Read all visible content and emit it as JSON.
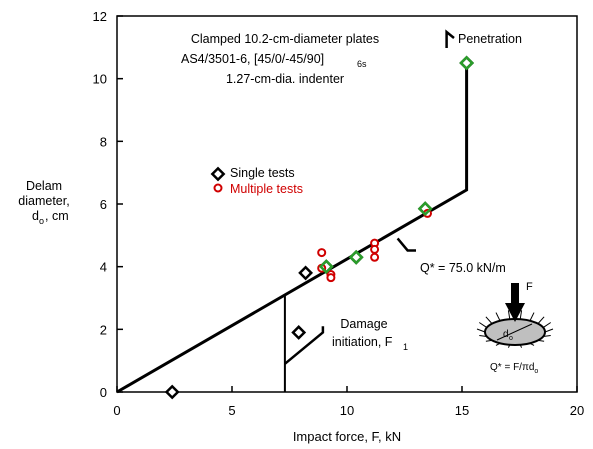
{
  "chart_data": {
    "type": "scatter",
    "xlabel": "Impact force, F, kN",
    "ylabel_lines": [
      "Delam",
      "diameter,",
      "d",
      "o",
      ", cm"
    ],
    "xlim": [
      0,
      20
    ],
    "ylim": [
      0,
      12
    ],
    "xticks": [
      0,
      5,
      10,
      15,
      20
    ],
    "yticks": [
      0,
      2,
      4,
      6,
      8,
      10,
      12
    ],
    "grid": false,
    "legend_position": "center-left",
    "info_lines": [
      "Clamped 10.2-cm-diameter plates",
      "AS4/3501-6,  [45/0/-45/90]",
      "6s",
      "1.27-cm-dia. indenter"
    ],
    "series": [
      {
        "name": "Single tests",
        "marker": "diamond",
        "color": "#000000",
        "points": [
          [
            2.4,
            0.0
          ],
          [
            7.9,
            1.9
          ],
          [
            8.2,
            3.8
          ],
          [
            9.1,
            4.0
          ],
          [
            10.4,
            4.3
          ],
          [
            13.4,
            5.85
          ],
          [
            15.2,
            10.5
          ]
        ]
      },
      {
        "name": "Multiple tests",
        "marker": "circle",
        "color": "#d00000",
        "points": [
          [
            8.9,
            4.45
          ],
          [
            8.9,
            3.95
          ],
          [
            9.3,
            3.75
          ],
          [
            9.3,
            3.65
          ],
          [
            11.2,
            4.75
          ],
          [
            11.2,
            4.55
          ],
          [
            11.2,
            4.3
          ],
          [
            13.5,
            5.7
          ]
        ]
      },
      {
        "name": "green-overlay",
        "marker": "diamond-green",
        "color": "#2a9d2a",
        "points": [
          [
            9.1,
            4.0
          ],
          [
            10.4,
            4.3
          ],
          [
            13.4,
            5.85
          ],
          [
            15.2,
            10.5
          ]
        ]
      }
    ],
    "lines": {
      "model": [
        [
          0,
          0
        ],
        [
          15.2,
          6.45
        ],
        [
          15.2,
          10.5
        ]
      ],
      "initiation": [
        [
          7.3,
          0
        ],
        [
          7.3,
          3.1
        ]
      ]
    },
    "annotations": {
      "penetration": "Penetration",
      "q_label": "Q* = 75.0 kN/m",
      "damage_line1": "Damage",
      "damage_line2": "initiation, F",
      "damage_sub": "1"
    },
    "inset": {
      "force": "F",
      "diameter": "d",
      "diameter_sub": "o",
      "formula": "Q* = F/",
      "formula_pi": "π",
      "formula_tail": "d",
      "formula_sub": "o"
    }
  }
}
